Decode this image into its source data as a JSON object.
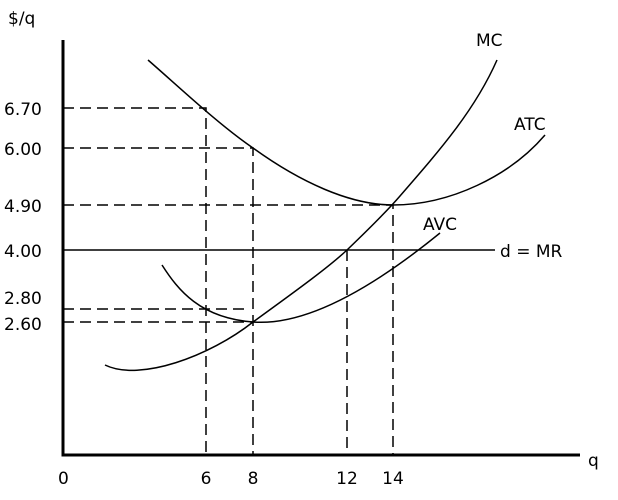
{
  "axes": {
    "y_label": "$/q",
    "x_label": "q",
    "origin": "0"
  },
  "y_ticks": [
    "6.70",
    "6.00",
    "4.90",
    "4.00",
    "2.80",
    "2.60"
  ],
  "x_ticks": [
    "6",
    "8",
    "12",
    "14"
  ],
  "curves": {
    "mc": "MC",
    "atc": "ATC",
    "avc": "AVC",
    "demand": "d = MR"
  }
}
